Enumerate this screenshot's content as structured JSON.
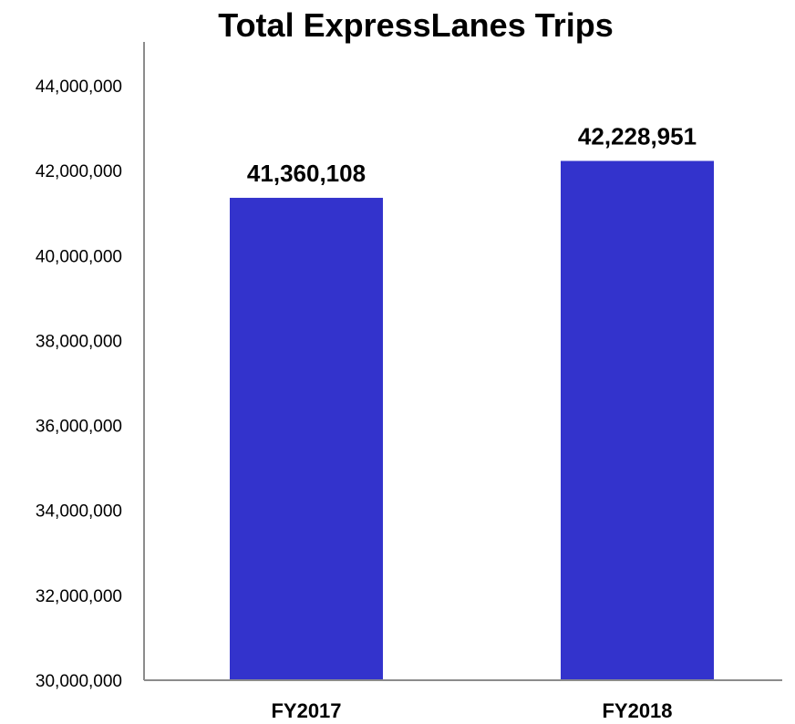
{
  "chart_data": {
    "type": "bar",
    "title": "Total ExpressLanes Trips",
    "xlabel": "",
    "ylabel": "",
    "categories": [
      "FY2017",
      "FY2018"
    ],
    "values": [
      41360108,
      42228951
    ],
    "data_labels": [
      "41,360,108",
      "42,228,951"
    ],
    "ylim": [
      30000000,
      44000000
    ],
    "yticks": [
      30000000,
      32000000,
      34000000,
      36000000,
      38000000,
      40000000,
      42000000,
      44000000
    ],
    "ytick_labels": [
      "30,000,000",
      "32,000,000",
      "34,000,000",
      "36,000,000",
      "38,000,000",
      "40,000,000",
      "42,000,000",
      "44,000,000"
    ],
    "bar_color": "#3333cc",
    "grid": false,
    "legend": "none"
  }
}
